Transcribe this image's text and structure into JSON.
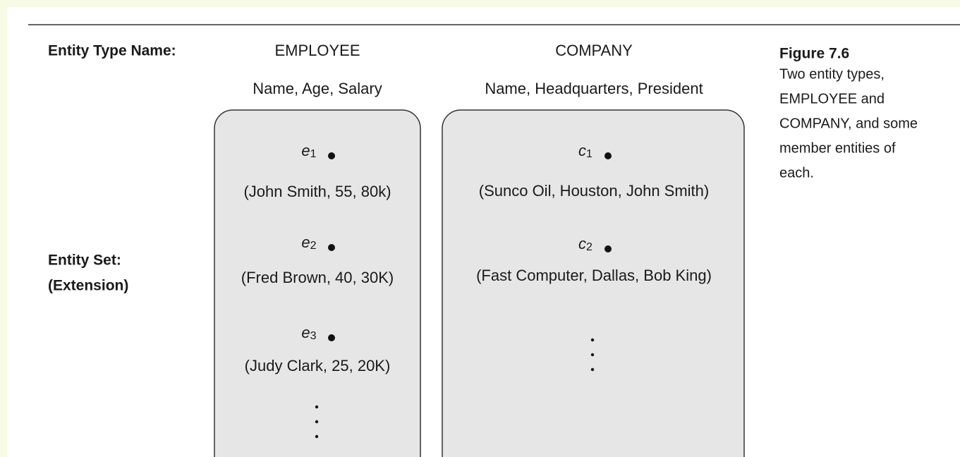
{
  "label_type": "Entity Type Name:",
  "label_set": [
    "Entity Set:",
    "(Extension)"
  ],
  "entity_types": [
    {
      "name": "EMPLOYEE",
      "attributes": "Name, Age, Salary",
      "entities": [
        {
          "symbol": "e",
          "index": "1",
          "tuple": "(John Smith, 55, 80k)"
        },
        {
          "symbol": "e",
          "index": "2",
          "tuple": "(Fred Brown, 40, 30K)"
        },
        {
          "symbol": "e",
          "index": "3",
          "tuple": "(Judy Clark, 25, 20K)"
        }
      ]
    },
    {
      "name": "COMPANY",
      "attributes": "Name, Headquarters, President",
      "entities": [
        {
          "symbol": "c",
          "index": "1",
          "tuple": "(Sunco Oil, Houston, John Smith)"
        },
        {
          "symbol": "c",
          "index": "2",
          "tuple": "(Fast Computer, Dallas, Bob King)"
        }
      ]
    }
  ],
  "caption": {
    "title": "Figure 7.6",
    "lines": [
      "Two entity types,",
      "EMPLOYEE and",
      "COMPANY, and some",
      "member entities of",
      "each."
    ]
  }
}
